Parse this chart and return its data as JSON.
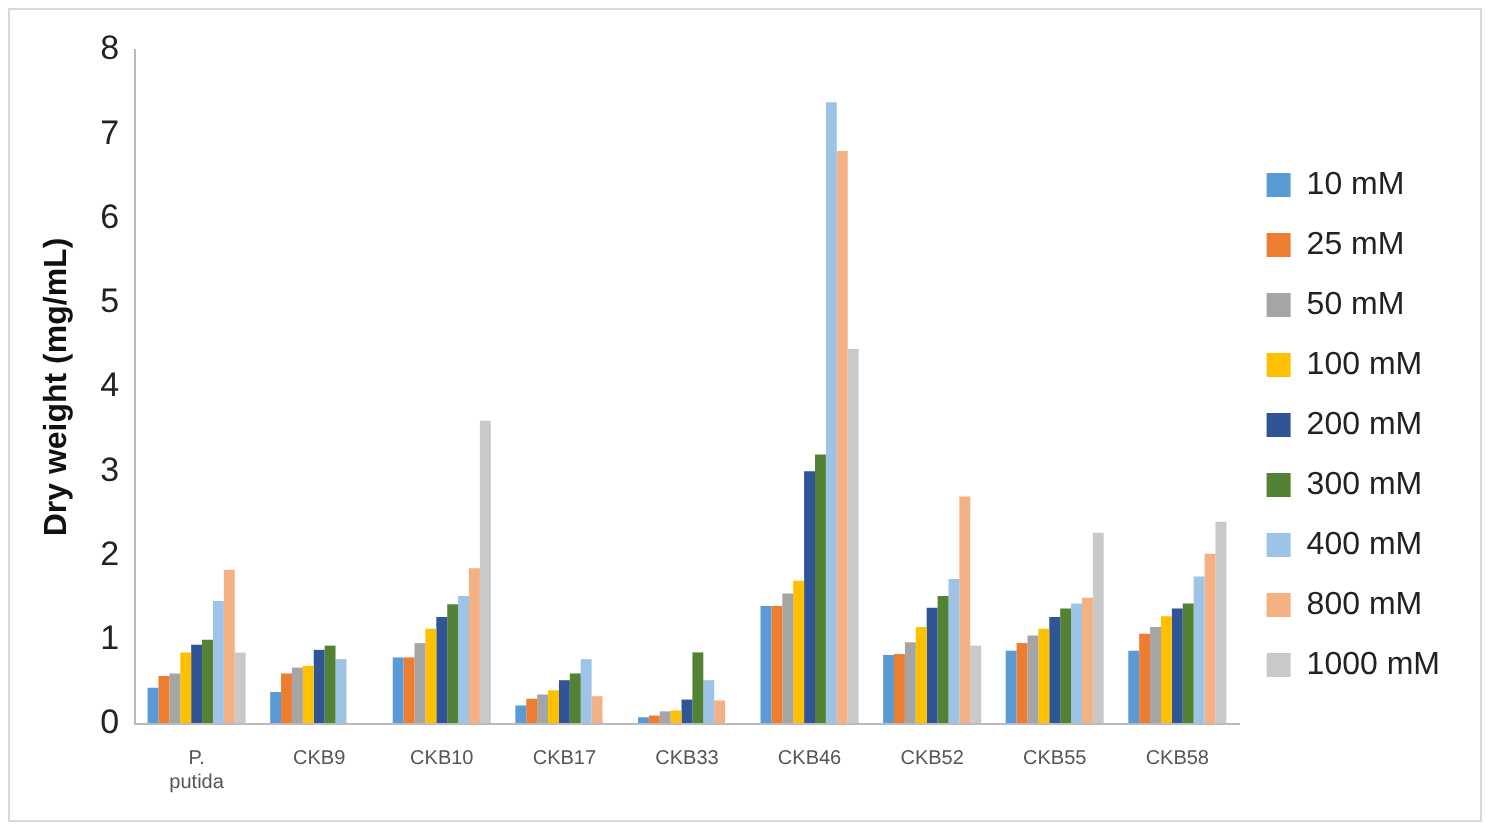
{
  "chart_data": {
    "type": "bar",
    "ylabel": "Dry weight (mg/mL)",
    "categories": [
      "P. putida",
      "CKB9",
      "CKB10",
      "CKB17",
      "CKB33",
      "CKB46",
      "CKB52",
      "CKB55",
      "CKB58"
    ],
    "series": [
      {
        "name": "10 mM",
        "color": "#5b9bd5",
        "values": [
          0.43,
          0.38,
          0.79,
          0.22,
          0.08,
          1.4,
          0.82,
          0.87,
          0.87
        ]
      },
      {
        "name": "25 mM",
        "color": "#ed7d31",
        "values": [
          0.57,
          0.6,
          0.79,
          0.3,
          0.1,
          1.4,
          0.83,
          0.96,
          1.07
        ]
      },
      {
        "name": "50 mM",
        "color": "#a5a5a5",
        "values": [
          0.6,
          0.67,
          0.96,
          0.35,
          0.15,
          1.55,
          0.97,
          1.05,
          1.15
        ]
      },
      {
        "name": "100 mM",
        "color": "#ffc000",
        "values": [
          0.85,
          0.69,
          1.13,
          0.4,
          0.16,
          1.7,
          1.15,
          1.13,
          1.28
        ]
      },
      {
        "name": "200 mM",
        "color": "#2f5597",
        "values": [
          0.94,
          0.88,
          1.27,
          0.52,
          0.29,
          3.0,
          1.38,
          1.27,
          1.37
        ]
      },
      {
        "name": "300 mM",
        "color": "#548235",
        "values": [
          1.0,
          0.93,
          1.42,
          0.6,
          0.85,
          3.2,
          1.52,
          1.37,
          1.43
        ]
      },
      {
        "name": "400 mM",
        "color": "#9dc3e6",
        "values": [
          1.46,
          0.77,
          1.52,
          0.77,
          0.52,
          7.38,
          1.72,
          1.43,
          1.75
        ]
      },
      {
        "name": "800 mM",
        "color": "#f4b183",
        "values": [
          1.83,
          null,
          1.85,
          0.33,
          0.28,
          6.8,
          2.7,
          1.5,
          2.02
        ]
      },
      {
        "name": "1000 mM",
        "color": "#c9c9c9",
        "values": [
          0.85,
          null,
          3.6,
          null,
          null,
          4.45,
          0.93,
          2.27,
          2.4
        ]
      }
    ],
    "ylim": [
      0,
      8
    ],
    "yticks": [
      0,
      1,
      2,
      3,
      4,
      5,
      6,
      7,
      8
    ],
    "grid": false,
    "legend": "right"
  }
}
